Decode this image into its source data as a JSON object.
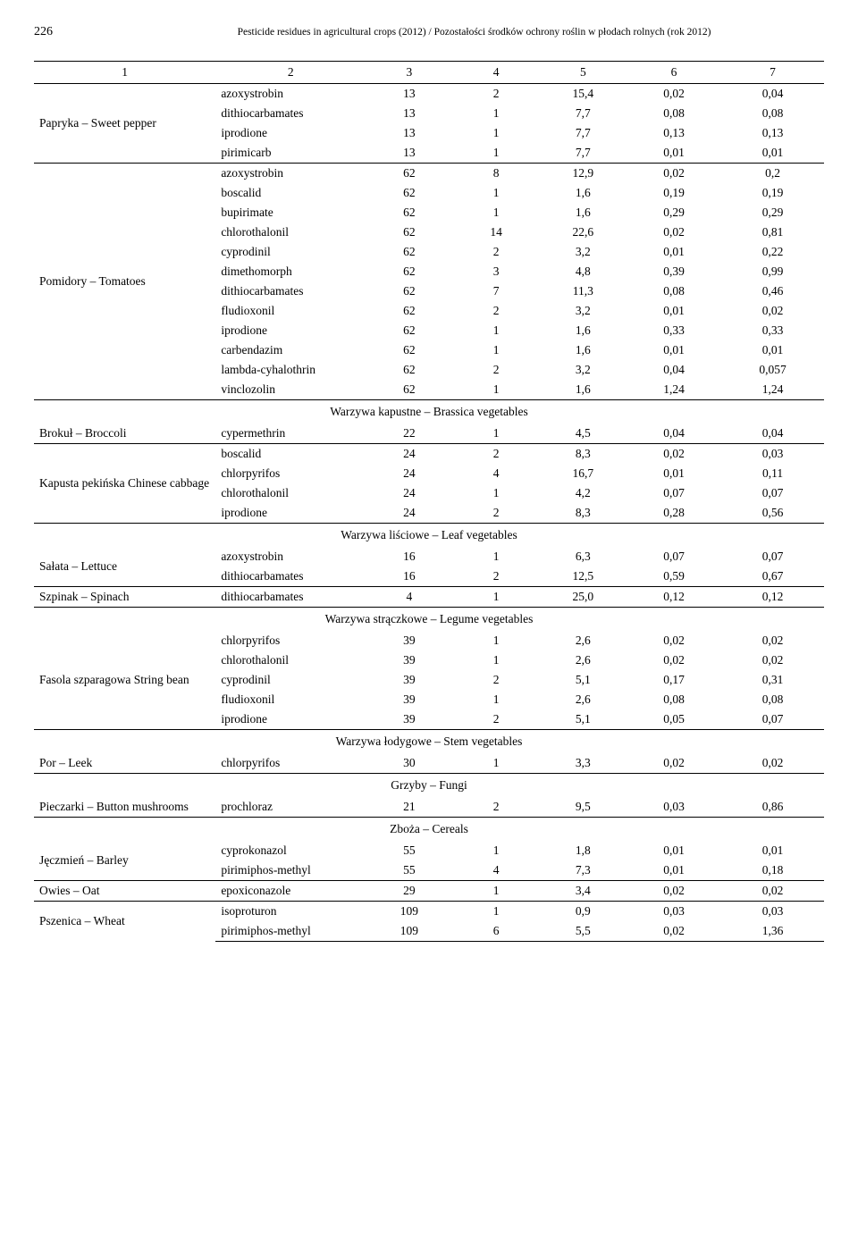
{
  "header": {
    "page_number": "226",
    "title": "Pesticide residues in agricultural crops (2012) / Pozostałości środków ochrony roślin w płodach rolnych (rok 2012)"
  },
  "column_headers": [
    "1",
    "2",
    "3",
    "4",
    "5",
    "6",
    "7"
  ],
  "groups": [
    {
      "crop": "Papryka – Sweet pepper",
      "rows": [
        {
          "pesticide": "azoxystrobin",
          "n": "13",
          "pos": "2",
          "pct": "15,4",
          "min": "0,02",
          "max": "0,04"
        },
        {
          "pesticide": "dithiocarbamates",
          "n": "13",
          "pos": "1",
          "pct": "7,7",
          "min": "0,08",
          "max": "0,08"
        },
        {
          "pesticide": "iprodione",
          "n": "13",
          "pos": "1",
          "pct": "7,7",
          "min": "0,13",
          "max": "0,13"
        },
        {
          "pesticide": "pirimicarb",
          "n": "13",
          "pos": "1",
          "pct": "7,7",
          "min": "0,01",
          "max": "0,01"
        }
      ]
    },
    {
      "crop": "Pomidory – Tomatoes",
      "rows": [
        {
          "pesticide": "azoxystrobin",
          "n": "62",
          "pos": "8",
          "pct": "12,9",
          "min": "0,02",
          "max": "0,2"
        },
        {
          "pesticide": "boscalid",
          "n": "62",
          "pos": "1",
          "pct": "1,6",
          "min": "0,19",
          "max": "0,19"
        },
        {
          "pesticide": "bupirimate",
          "n": "62",
          "pos": "1",
          "pct": "1,6",
          "min": "0,29",
          "max": "0,29"
        },
        {
          "pesticide": "chlorothalonil",
          "n": "62",
          "pos": "14",
          "pct": "22,6",
          "min": "0,02",
          "max": "0,81"
        },
        {
          "pesticide": "cyprodinil",
          "n": "62",
          "pos": "2",
          "pct": "3,2",
          "min": "0,01",
          "max": "0,22"
        },
        {
          "pesticide": "dimethomorph",
          "n": "62",
          "pos": "3",
          "pct": "4,8",
          "min": "0,39",
          "max": "0,99"
        },
        {
          "pesticide": "dithiocarbamates",
          "n": "62",
          "pos": "7",
          "pct": "11,3",
          "min": "0,08",
          "max": "0,46"
        },
        {
          "pesticide": "fludioxonil",
          "n": "62",
          "pos": "2",
          "pct": "3,2",
          "min": "0,01",
          "max": "0,02"
        },
        {
          "pesticide": "iprodione",
          "n": "62",
          "pos": "1",
          "pct": "1,6",
          "min": "0,33",
          "max": "0,33"
        },
        {
          "pesticide": "carbendazim",
          "n": "62",
          "pos": "1",
          "pct": "1,6",
          "min": "0,01",
          "max": "0,01"
        },
        {
          "pesticide": "lambda-cyhalothrin",
          "n": "62",
          "pos": "2",
          "pct": "3,2",
          "min": "0,04",
          "max": "0,057"
        },
        {
          "pesticide": "vinclozolin",
          "n": "62",
          "pos": "1",
          "pct": "1,6",
          "min": "1,24",
          "max": "1,24"
        }
      ]
    }
  ],
  "sections": [
    {
      "title": "Warzywa kapustne – Brassica vegetables",
      "groups": [
        {
          "crop": "Brokuł – Broccoli",
          "rows": [
            {
              "pesticide": "cypermethrin",
              "n": "22",
              "pos": "1",
              "pct": "4,5",
              "min": "0,04",
              "max": "0,04"
            }
          ]
        },
        {
          "crop": "Kapusta pekińska Chinese cabbage",
          "rows": [
            {
              "pesticide": "boscalid",
              "n": "24",
              "pos": "2",
              "pct": "8,3",
              "min": "0,02",
              "max": "0,03"
            },
            {
              "pesticide": "chlorpyrifos",
              "n": "24",
              "pos": "4",
              "pct": "16,7",
              "min": "0,01",
              "max": "0,11"
            },
            {
              "pesticide": "chlorothalonil",
              "n": "24",
              "pos": "1",
              "pct": "4,2",
              "min": "0,07",
              "max": "0,07"
            },
            {
              "pesticide": "iprodione",
              "n": "24",
              "pos": "2",
              "pct": "8,3",
              "min": "0,28",
              "max": "0,56"
            }
          ]
        }
      ]
    },
    {
      "title": "Warzywa liściowe – Leaf vegetables",
      "groups": [
        {
          "crop": "Sałata – Lettuce",
          "rows": [
            {
              "pesticide": "azoxystrobin",
              "n": "16",
              "pos": "1",
              "pct": "6,3",
              "min": "0,07",
              "max": "0,07"
            },
            {
              "pesticide": "dithiocarbamates",
              "n": "16",
              "pos": "2",
              "pct": "12,5",
              "min": "0,59",
              "max": "0,67"
            }
          ]
        },
        {
          "crop": "Szpinak – Spinach",
          "rows": [
            {
              "pesticide": "dithiocarbamates",
              "n": "4",
              "pos": "1",
              "pct": "25,0",
              "min": "0,12",
              "max": "0,12"
            }
          ]
        }
      ]
    },
    {
      "title": "Warzywa strączkowe – Legume vegetables",
      "groups": [
        {
          "crop": "Fasola szparagowa String bean",
          "rows": [
            {
              "pesticide": "chlorpyrifos",
              "n": "39",
              "pos": "1",
              "pct": "2,6",
              "min": "0,02",
              "max": "0,02"
            },
            {
              "pesticide": "chlorothalonil",
              "n": "39",
              "pos": "1",
              "pct": "2,6",
              "min": "0,02",
              "max": "0,02"
            },
            {
              "pesticide": "cyprodinil",
              "n": "39",
              "pos": "2",
              "pct": "5,1",
              "min": "0,17",
              "max": "0,31"
            },
            {
              "pesticide": "fludioxonil",
              "n": "39",
              "pos": "1",
              "pct": "2,6",
              "min": "0,08",
              "max": "0,08"
            },
            {
              "pesticide": "iprodione",
              "n": "39",
              "pos": "2",
              "pct": "5,1",
              "min": "0,05",
              "max": "0,07"
            }
          ]
        }
      ]
    },
    {
      "title": "Warzywa łodygowe – Stem vegetables",
      "groups": [
        {
          "crop": "Por – Leek",
          "rows": [
            {
              "pesticide": "chlorpyrifos",
              "n": "30",
              "pos": "1",
              "pct": "3,3",
              "min": "0,02",
              "max": "0,02"
            }
          ]
        }
      ]
    },
    {
      "title": "Grzyby – Fungi",
      "groups": [
        {
          "crop": "Pieczarki – Button mushrooms",
          "rows": [
            {
              "pesticide": "prochloraz",
              "n": "21",
              "pos": "2",
              "pct": "9,5",
              "min": "0,03",
              "max": "0,86"
            }
          ]
        }
      ]
    },
    {
      "title": "Zboża – Cereals",
      "groups": [
        {
          "crop": "Jęczmień – Barley",
          "rows": [
            {
              "pesticide": "cyprokonazol",
              "n": "55",
              "pos": "1",
              "pct": "1,8",
              "min": "0,01",
              "max": "0,01"
            },
            {
              "pesticide": "pirimiphos-methyl",
              "n": "55",
              "pos": "4",
              "pct": "7,3",
              "min": "0,01",
              "max": "0,18"
            }
          ]
        },
        {
          "crop": "Owies – Oat",
          "rows": [
            {
              "pesticide": "epoxiconazole",
              "n": "29",
              "pos": "1",
              "pct": "3,4",
              "min": "0,02",
              "max": "0,02"
            }
          ]
        },
        {
          "crop": "Pszenica – Wheat",
          "rows": [
            {
              "pesticide": "isoproturon",
              "n": "109",
              "pos": "1",
              "pct": "0,9",
              "min": "0,03",
              "max": "0,03"
            },
            {
              "pesticide": "pirimiphos-methyl",
              "n": "109",
              "pos": "6",
              "pct": "5,5",
              "min": "0,02",
              "max": "1,36"
            }
          ]
        }
      ]
    }
  ]
}
